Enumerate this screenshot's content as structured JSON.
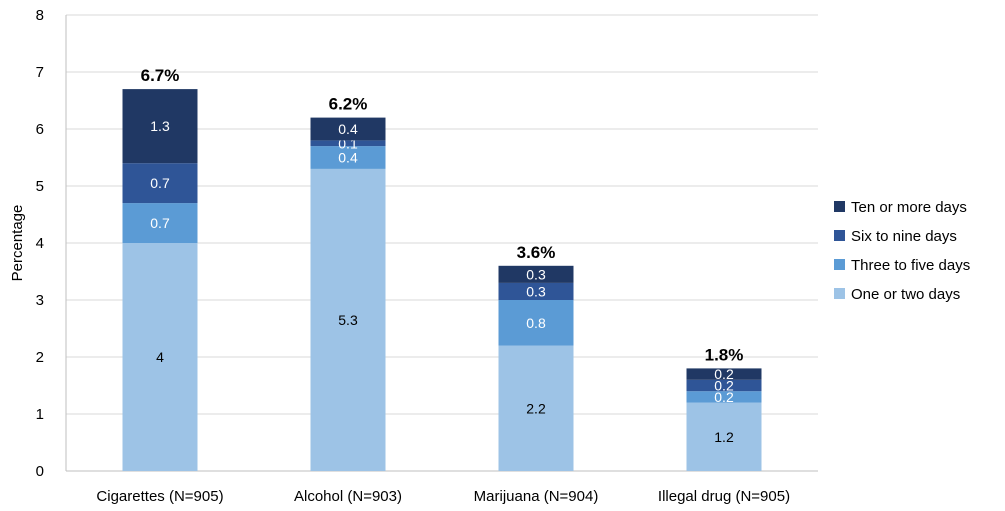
{
  "chart_data": {
    "type": "bar",
    "stacked": true,
    "categories": [
      "Cigarettes (N=905)",
      "Alcohol (N=903)",
      "Marijuana (N=904)",
      "Illegal drug (N=905)"
    ],
    "series": [
      {
        "name": "One or two days",
        "color": "#9DC3E6",
        "values": [
          4,
          5.3,
          2.2,
          1.2
        ],
        "labels": [
          "4",
          "5.3",
          "2.2",
          "1.2"
        ]
      },
      {
        "name": "Three to five days",
        "color": "#5B9BD5",
        "values": [
          0.7,
          0.4,
          0.8,
          0.2
        ],
        "labels": [
          "0.7",
          "0.4",
          "0.8",
          "0.2"
        ]
      },
      {
        "name": "Six to nine days",
        "color": "#2F5597",
        "values": [
          0.7,
          0.1,
          0.3,
          0.2
        ],
        "labels": [
          "0.7",
          "0.1",
          "0.3",
          "0.2"
        ]
      },
      {
        "name": "Ten or more days",
        "color": "#203864",
        "values": [
          1.3,
          0.4,
          0.3,
          0.2
        ],
        "labels": [
          "1.3",
          "0.4",
          "0.3",
          "0.2"
        ]
      }
    ],
    "totals": [
      "6.7%",
      "6.2%",
      "3.6%",
      "1.8%"
    ],
    "ylabel": "Percentage",
    "xlabel": "",
    "title": "",
    "ylim": [
      0,
      8
    ],
    "yticks": [
      "0",
      "1",
      "2",
      "3",
      "4",
      "5",
      "6",
      "7",
      "8"
    ],
    "grid": true,
    "legend_position": "right"
  }
}
